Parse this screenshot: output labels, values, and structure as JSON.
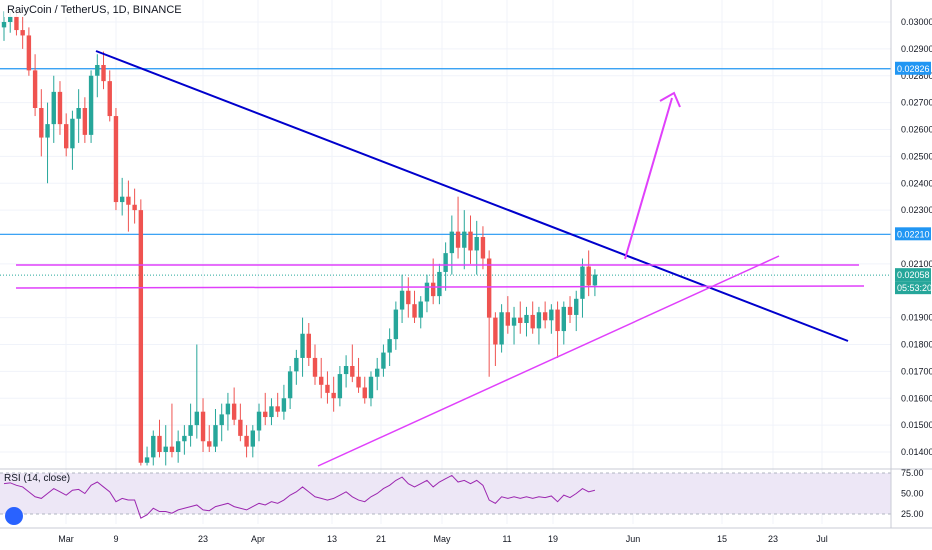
{
  "header": {
    "title": "RaiyCoin / TetherUS, 1D, BINANCE"
  },
  "rsi": {
    "title": "RSI (14, close)",
    "ticks": [
      "75.00",
      "50.00",
      "25.00"
    ]
  },
  "colors": {
    "up": "#26a69a",
    "down": "#ef5350",
    "resistance": "#2196f3",
    "trendline": "#0000cc",
    "channel": "#e040fb",
    "rsi_line": "#9c27b0",
    "rsi_band": "#ede7f6"
  },
  "chart_data": {
    "type": "candlestick",
    "y_axis": {
      "ticks": [
        "0.03000",
        "0.02900",
        "0.02800",
        "0.02700",
        "0.02600",
        "0.02500",
        "0.02400",
        "0.02300",
        "0.02100",
        "0.01900",
        "0.01800",
        "0.01700",
        "0.01600",
        "0.01500",
        "0.01400"
      ],
      "ylim": [
        0.0135,
        0.0304
      ]
    },
    "x_axis": {
      "ticks": [
        "Mar",
        "9",
        "23",
        "Apr",
        "13",
        "21",
        "May",
        "11",
        "19",
        "Jun",
        "15",
        "23",
        "Jul"
      ]
    },
    "price_labels": [
      {
        "value": "0.02826",
        "color": "#2196f3"
      },
      {
        "value": "0.02210",
        "color": "#2196f3"
      },
      {
        "value": "0.02058",
        "color": "#26a69a"
      },
      {
        "value": "05:53:20",
        "color": "#26a69a"
      }
    ],
    "horizontal_levels": [
      0.02826,
      0.0221,
      0.02058
    ],
    "candles": [
      [
        0.0298,
        0.0304,
        0.0293,
        0.03
      ],
      [
        0.03,
        0.0304,
        0.0296,
        0.0302
      ],
      [
        0.0302,
        0.0304,
        0.0295,
        0.0297
      ],
      [
        0.0297,
        0.0302,
        0.029,
        0.0295
      ],
      [
        0.0295,
        0.0298,
        0.028,
        0.0282
      ],
      [
        0.0282,
        0.0288,
        0.0265,
        0.0268
      ],
      [
        0.0268,
        0.0275,
        0.025,
        0.0257
      ],
      [
        0.0257,
        0.027,
        0.024,
        0.0262
      ],
      [
        0.0262,
        0.028,
        0.0255,
        0.0274
      ],
      [
        0.0274,
        0.0278,
        0.0258,
        0.0262
      ],
      [
        0.0262,
        0.0266,
        0.025,
        0.0253
      ],
      [
        0.0253,
        0.0267,
        0.0245,
        0.0264
      ],
      [
        0.0264,
        0.0275,
        0.0255,
        0.0268
      ],
      [
        0.0268,
        0.0272,
        0.0255,
        0.0258
      ],
      [
        0.0258,
        0.0282,
        0.0255,
        0.028
      ],
      [
        0.028,
        0.0288,
        0.0272,
        0.0284
      ],
      [
        0.0284,
        0.0289,
        0.0275,
        0.0278
      ],
      [
        0.0278,
        0.0282,
        0.0263,
        0.0265
      ],
      [
        0.0265,
        0.0268,
        0.023,
        0.0233
      ],
      [
        0.0233,
        0.0242,
        0.0228,
        0.0235
      ],
      [
        0.0235,
        0.0241,
        0.0222,
        0.0232
      ],
      [
        0.0232,
        0.0238,
        0.0225,
        0.023
      ],
      [
        0.023,
        0.0234,
        0.0135,
        0.0136
      ],
      [
        0.0136,
        0.0142,
        0.0135,
        0.0138
      ],
      [
        0.0138,
        0.0148,
        0.0135,
        0.0146
      ],
      [
        0.0146,
        0.0152,
        0.0138,
        0.014
      ],
      [
        0.014,
        0.015,
        0.0135,
        0.0142
      ],
      [
        0.0142,
        0.0158,
        0.0138,
        0.014
      ],
      [
        0.014,
        0.0148,
        0.0136,
        0.0144
      ],
      [
        0.0144,
        0.015,
        0.0139,
        0.0146
      ],
      [
        0.0146,
        0.0158,
        0.0142,
        0.015
      ],
      [
        0.015,
        0.018,
        0.0145,
        0.0155
      ],
      [
        0.0155,
        0.016,
        0.014,
        0.0144
      ],
      [
        0.0144,
        0.015,
        0.014,
        0.0142
      ],
      [
        0.0142,
        0.0156,
        0.014,
        0.015
      ],
      [
        0.015,
        0.0158,
        0.0144,
        0.0154
      ],
      [
        0.0154,
        0.0162,
        0.0148,
        0.0158
      ],
      [
        0.0158,
        0.0164,
        0.015,
        0.0152
      ],
      [
        0.0152,
        0.0158,
        0.0144,
        0.0146
      ],
      [
        0.0146,
        0.015,
        0.0138,
        0.0142
      ],
      [
        0.0142,
        0.015,
        0.0138,
        0.0148
      ],
      [
        0.0148,
        0.0158,
        0.0144,
        0.0155
      ],
      [
        0.0155,
        0.0162,
        0.015,
        0.0153
      ],
      [
        0.0153,
        0.016,
        0.015,
        0.0157
      ],
      [
        0.0157,
        0.0162,
        0.0153,
        0.0155
      ],
      [
        0.0155,
        0.0165,
        0.0152,
        0.016
      ],
      [
        0.016,
        0.0172,
        0.0156,
        0.017
      ],
      [
        0.017,
        0.0178,
        0.0165,
        0.0175
      ],
      [
        0.0175,
        0.019,
        0.0168,
        0.0184
      ],
      [
        0.0184,
        0.0188,
        0.0172,
        0.0175
      ],
      [
        0.0175,
        0.018,
        0.0165,
        0.0168
      ],
      [
        0.0168,
        0.0175,
        0.016,
        0.0165
      ],
      [
        0.0165,
        0.017,
        0.0158,
        0.0162
      ],
      [
        0.0162,
        0.0168,
        0.0155,
        0.016
      ],
      [
        0.016,
        0.0172,
        0.0157,
        0.0169
      ],
      [
        0.0169,
        0.0176,
        0.0164,
        0.0172
      ],
      [
        0.0172,
        0.018,
        0.0166,
        0.0168
      ],
      [
        0.0168,
        0.0175,
        0.0162,
        0.0164
      ],
      [
        0.0164,
        0.0168,
        0.0158,
        0.016
      ],
      [
        0.016,
        0.017,
        0.0157,
        0.0168
      ],
      [
        0.0168,
        0.0175,
        0.0163,
        0.0171
      ],
      [
        0.0171,
        0.018,
        0.0168,
        0.0177
      ],
      [
        0.0177,
        0.0186,
        0.0172,
        0.0182
      ],
      [
        0.0182,
        0.0196,
        0.0178,
        0.0193
      ],
      [
        0.0193,
        0.0206,
        0.0188,
        0.02
      ],
      [
        0.02,
        0.0205,
        0.019,
        0.0195
      ],
      [
        0.0195,
        0.02,
        0.0188,
        0.019
      ],
      [
        0.019,
        0.0198,
        0.0186,
        0.0196
      ],
      [
        0.0196,
        0.0206,
        0.0192,
        0.0203
      ],
      [
        0.0203,
        0.0212,
        0.0195,
        0.0198
      ],
      [
        0.0198,
        0.021,
        0.0195,
        0.0207
      ],
      [
        0.0207,
        0.0218,
        0.02,
        0.0214
      ],
      [
        0.0214,
        0.0228,
        0.0206,
        0.0222
      ],
      [
        0.0222,
        0.0235,
        0.0212,
        0.0216
      ],
      [
        0.0216,
        0.023,
        0.0208,
        0.0222
      ],
      [
        0.0222,
        0.0228,
        0.021,
        0.0215
      ],
      [
        0.0215,
        0.0226,
        0.0206,
        0.022
      ],
      [
        0.022,
        0.0224,
        0.0208,
        0.0212
      ],
      [
        0.0212,
        0.0215,
        0.0168,
        0.019
      ],
      [
        0.019,
        0.0192,
        0.0172,
        0.018
      ],
      [
        0.018,
        0.0195,
        0.0177,
        0.0192
      ],
      [
        0.0192,
        0.0198,
        0.0184,
        0.0187
      ],
      [
        0.0187,
        0.0194,
        0.018,
        0.019
      ],
      [
        0.019,
        0.0196,
        0.0184,
        0.0188
      ],
      [
        0.0188,
        0.0194,
        0.0183,
        0.0191
      ],
      [
        0.0191,
        0.0196,
        0.0184,
        0.0186
      ],
      [
        0.0186,
        0.0194,
        0.018,
        0.0192
      ],
      [
        0.0192,
        0.0196,
        0.0186,
        0.0189
      ],
      [
        0.0189,
        0.0195,
        0.0184,
        0.0193
      ],
      [
        0.0193,
        0.0196,
        0.0175,
        0.0185
      ],
      [
        0.0185,
        0.0196,
        0.018,
        0.0194
      ],
      [
        0.0194,
        0.0198,
        0.0188,
        0.0191
      ],
      [
        0.0191,
        0.02,
        0.0185,
        0.0197
      ],
      [
        0.0197,
        0.0212,
        0.019,
        0.0209
      ],
      [
        0.0209,
        0.0215,
        0.0198,
        0.0202
      ],
      [
        0.0202,
        0.0208,
        0.0198,
        0.0206
      ]
    ],
    "rsi_values": [
      62,
      63,
      60,
      58,
      52,
      46,
      44,
      50,
      56,
      52,
      48,
      54,
      55,
      50,
      60,
      64,
      58,
      52,
      40,
      44,
      42,
      42,
      20,
      24,
      32,
      28,
      28,
      26,
      30,
      32,
      34,
      36,
      30,
      29,
      34,
      36,
      38,
      34,
      32,
      30,
      34,
      38,
      36,
      40,
      38,
      42,
      48,
      52,
      58,
      52,
      46,
      44,
      42,
      44,
      48,
      52,
      46,
      42,
      40,
      46,
      50,
      56,
      60,
      66,
      70,
      62,
      58,
      62,
      66,
      58,
      64,
      68,
      72,
      64,
      66,
      62,
      66,
      60,
      42,
      38,
      46,
      44,
      46,
      44,
      46,
      44,
      46,
      45,
      47,
      40,
      48,
      45,
      50,
      56,
      52,
      54
    ]
  }
}
